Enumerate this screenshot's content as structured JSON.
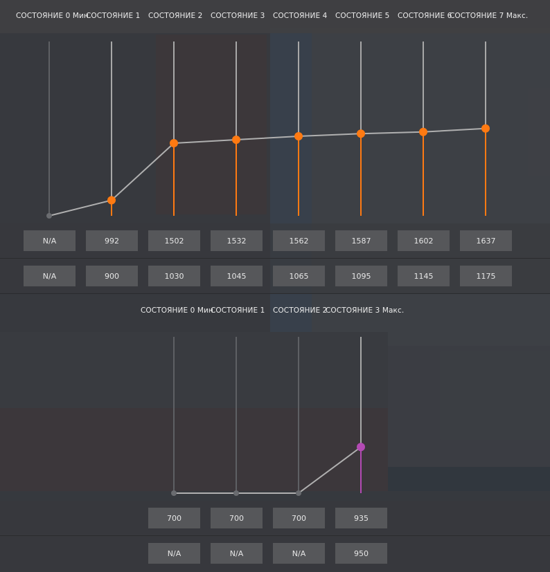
{
  "upper_panel": {
    "states": [
      {
        "label": "СОСТОЯНИЕ 0 Мин",
        "top_value": "N/A",
        "bottom_value": "N/A",
        "active": false,
        "level": 0.0
      },
      {
        "label": "СОСТОЯНИЕ 1",
        "top_value": "992",
        "bottom_value": "900",
        "active": true,
        "level": 0.09
      },
      {
        "label": "СОСТОЯНИЕ 2",
        "top_value": "1502",
        "bottom_value": "1030",
        "active": true,
        "level": 0.42
      },
      {
        "label": "СОСТОЯНИЕ 3",
        "top_value": "1532",
        "bottom_value": "1045",
        "active": true,
        "level": 0.44
      },
      {
        "label": "СОСТОЯНИЕ 4",
        "top_value": "1562",
        "bottom_value": "1065",
        "active": true,
        "level": 0.46
      },
      {
        "label": "СОСТОЯНИЕ 5",
        "top_value": "1587",
        "bottom_value": "1095",
        "active": true,
        "level": 0.475
      },
      {
        "label": "СОСТОЯНИЕ 6",
        "top_value": "1602",
        "bottom_value": "1145",
        "active": true,
        "level": 0.485
      },
      {
        "label": "СОСТОЯНИЕ 7 Макс.",
        "top_value": "1637",
        "bottom_value": "1175",
        "active": true,
        "level": 0.505
      }
    ],
    "accent_color": "#ff7a12"
  },
  "lower_panel": {
    "states": [
      {
        "label": "СОСТОЯНИЕ 0 Мин",
        "top_value": "700",
        "bottom_value": "N/A",
        "active": false,
        "level": 0.0
      },
      {
        "label": "СОСТОЯНИЕ 1",
        "top_value": "700",
        "bottom_value": "N/A",
        "active": false,
        "level": 0.0
      },
      {
        "label": "СОСТОЯНИЕ 2",
        "top_value": "700",
        "bottom_value": "N/A",
        "active": false,
        "level": 0.0
      },
      {
        "label": "СОСТОЯНИЕ 3 Макс.",
        "top_value": "935",
        "bottom_value": "950",
        "active": true,
        "level": 0.29
      }
    ],
    "accent_color": "#b44ab4"
  }
}
